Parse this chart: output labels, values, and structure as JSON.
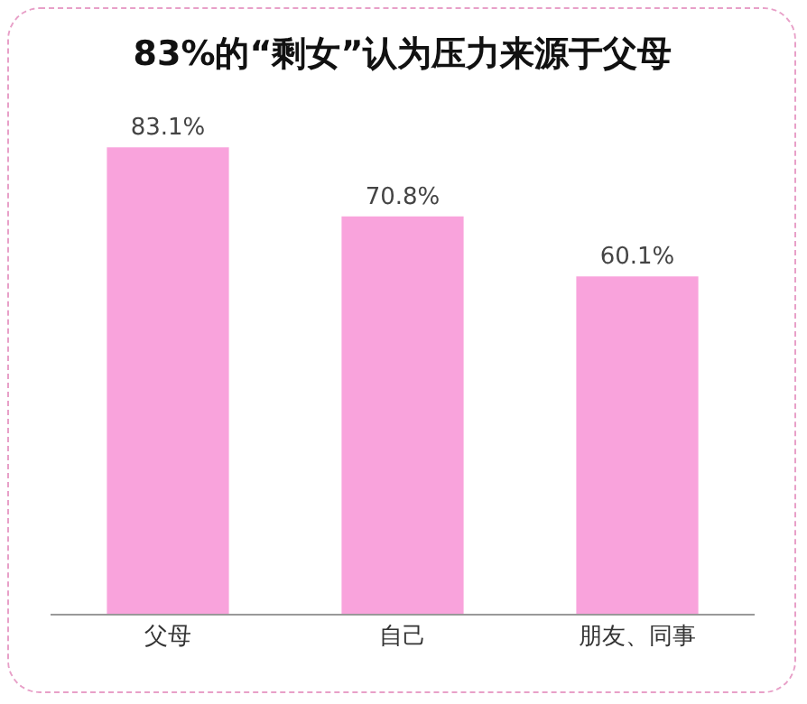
{
  "chart_data": {
    "type": "bar",
    "title": "83%的“剩女”认为压力来源于父母",
    "categories": [
      "父母",
      "自己",
      "朋友、同事"
    ],
    "values": [
      83.1,
      70.8,
      60.1
    ],
    "value_labels": [
      "83.1%",
      "70.8%",
      "60.1%"
    ],
    "color": "#f9a3dc"
  }
}
